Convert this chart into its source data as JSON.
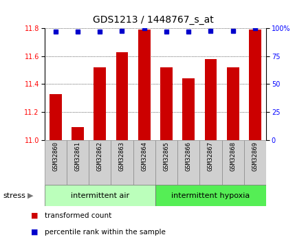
{
  "title": "GDS1213 / 1448767_s_at",
  "samples": [
    "GSM32860",
    "GSM32861",
    "GSM32862",
    "GSM32863",
    "GSM32864",
    "GSM32865",
    "GSM32866",
    "GSM32867",
    "GSM32868",
    "GSM32869"
  ],
  "transformed_counts": [
    11.33,
    11.09,
    11.52,
    11.63,
    11.79,
    11.52,
    11.44,
    11.58,
    11.52,
    11.79
  ],
  "percentile_ranks": [
    97,
    97,
    97,
    98,
    100,
    97,
    97,
    98,
    98,
    100
  ],
  "ylim_left": [
    11.0,
    11.8
  ],
  "ylim_right": [
    0,
    100
  ],
  "yticks_left": [
    11.0,
    11.2,
    11.4,
    11.6,
    11.8
  ],
  "yticks_right": [
    0,
    25,
    50,
    75,
    100
  ],
  "bar_color": "#cc0000",
  "dot_color": "#0000cc",
  "group1_label": "intermittent air",
  "group2_label": "intermittent hypoxia",
  "group_label": "stress",
  "group1_count": 5,
  "group2_count": 5,
  "legend_bar_label": "transformed count",
  "legend_dot_label": "percentile rank within the sample",
  "group1_bg": "#bbffbb",
  "group2_bg": "#55ee55",
  "sample_bg": "#d0d0d0",
  "background_color": "#ffffff"
}
